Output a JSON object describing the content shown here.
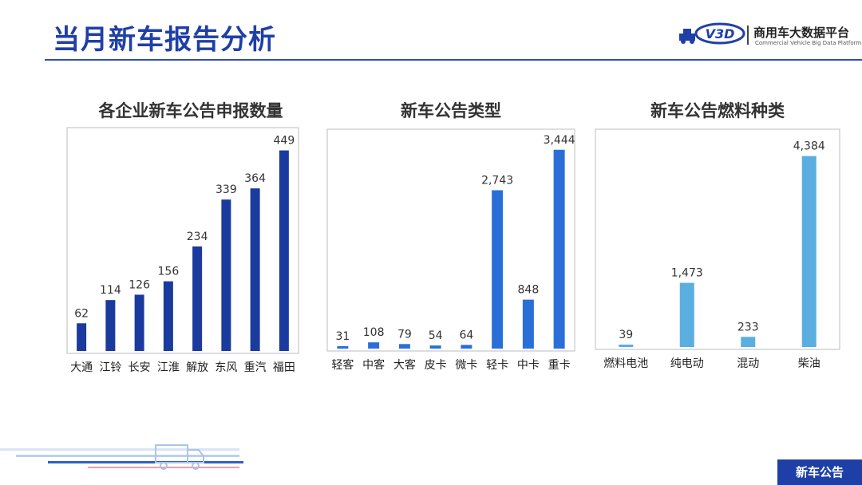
{
  "header": {
    "title": "当月新车报告分析"
  },
  "logo": {
    "mark": "V3D",
    "name": "商用车大数据平台",
    "sub": "Commercial Vehicle Big Data Platform"
  },
  "footer": {
    "tag": "新车公告"
  },
  "colors": {
    "dark": "#1a3a9e",
    "mid": "#2a6fd8",
    "light": "#5aaee0",
    "brand": "#1f3fa8"
  },
  "chart_data": [
    {
      "type": "bar",
      "title": "各企业新车公告申报数量",
      "categories": [
        "大通",
        "江铃",
        "长安",
        "江淮",
        "解放",
        "东风",
        "重汽",
        "福田"
      ],
      "values": [
        62,
        114,
        126,
        156,
        234,
        339,
        364,
        449
      ],
      "labels": [
        "62",
        "114",
        "126",
        "156",
        "234",
        "339",
        "364",
        "449"
      ],
      "ylim": [
        0,
        500
      ],
      "grid": false,
      "color": "#1a3a9e"
    },
    {
      "type": "bar",
      "title": "新车公告类型",
      "categories": [
        "轻客",
        "中客",
        "大客",
        "皮卡",
        "微卡",
        "轻卡",
        "中卡",
        "重卡"
      ],
      "values": [
        31,
        108,
        79,
        54,
        64,
        2743,
        848,
        3444
      ],
      "labels": [
        "31",
        "108",
        "79",
        "54",
        "64",
        "2,743",
        "848",
        "3,444"
      ],
      "ylim": [
        0,
        3800
      ],
      "grid": false,
      "color": "#2a6fd8"
    },
    {
      "type": "bar",
      "title": "新车公告燃料种类",
      "categories": [
        "燃料电池",
        "纯电动",
        "混动",
        "柴油"
      ],
      "values": [
        39,
        1473,
        233,
        4384
      ],
      "labels": [
        "39",
        "1,473",
        "233",
        "4,384"
      ],
      "ylim": [
        0,
        5000
      ],
      "grid": false,
      "color": "#5aaee0"
    }
  ]
}
